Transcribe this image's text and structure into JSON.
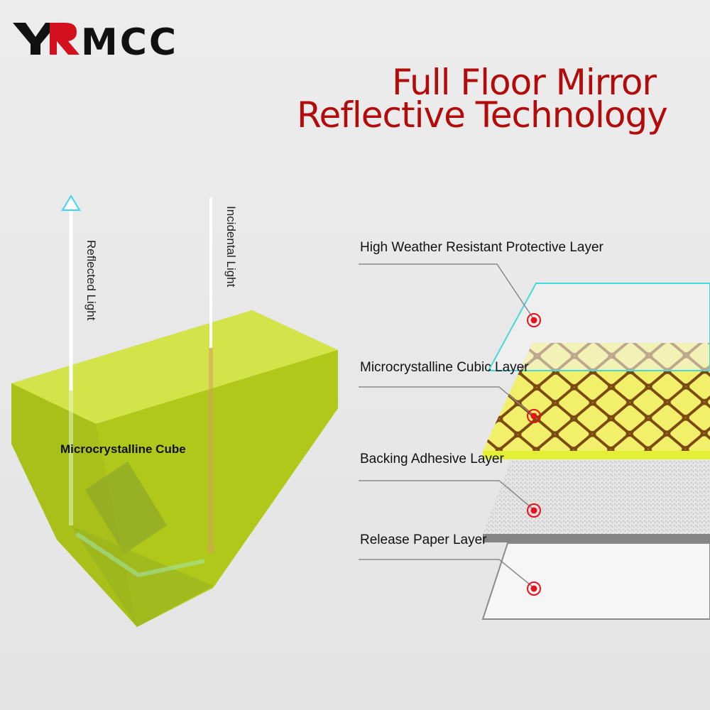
{
  "brand": {
    "logo_text": "YRMCC",
    "colors": {
      "dark": "#111111",
      "accent": "#d3101e"
    }
  },
  "title": {
    "line1": "Full Floor Mirror",
    "line2": "Reflective Technology",
    "color": "#b30a0a"
  },
  "cube": {
    "label": "Microcrystalline Cube",
    "color": "#c4dc28",
    "reflected_light_label": "Reflected Light",
    "incidental_light_label": "Incidental Light",
    "reflected_color": "#3fd4f0",
    "incidental_color": "#e8303a"
  },
  "layers": [
    {
      "label": "High Weather Resistant Protective Layer",
      "marker_icon": "target-dot-icon"
    },
    {
      "label": "Microcrystalline Cubic Layer",
      "marker_icon": "target-dot-icon"
    },
    {
      "label": "Backing Adhesive Layer",
      "marker_icon": "target-dot-icon"
    },
    {
      "label": "Release Paper Layer",
      "marker_icon": "target-dot-icon"
    }
  ]
}
